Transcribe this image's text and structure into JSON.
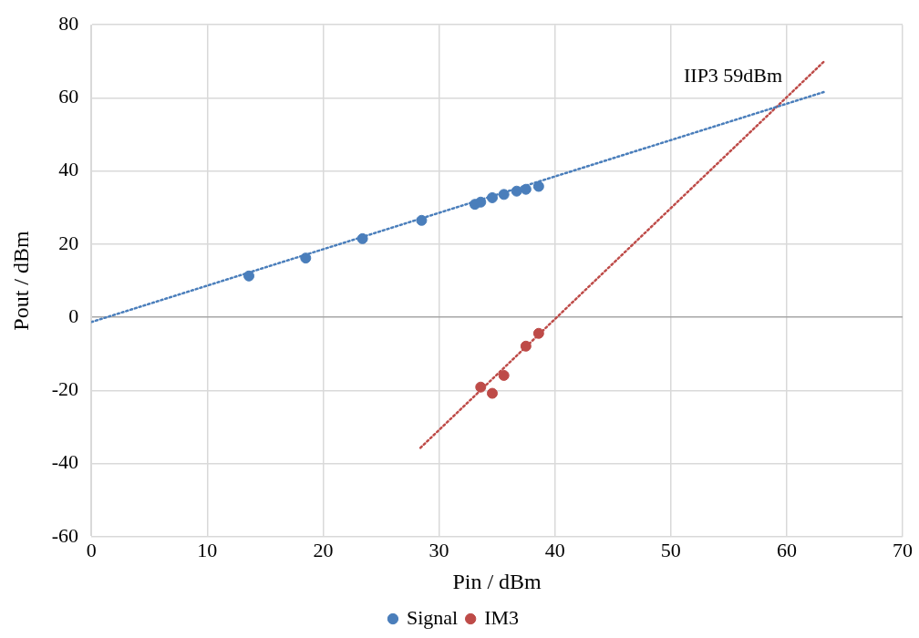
{
  "chart_data": {
    "type": "scatter",
    "xlabel": "Pin / dBm",
    "ylabel": "Pout / dBm",
    "xlim": [
      0,
      70
    ],
    "xticks": [
      0,
      10,
      20,
      30,
      40,
      50,
      60,
      70
    ],
    "ylim": [
      -60,
      80
    ],
    "yticks": [
      -60,
      -40,
      -20,
      0,
      20,
      40,
      60,
      80
    ],
    "grid": true,
    "legend": "bottom",
    "marker": "circle",
    "series": [
      {
        "name": "Signal",
        "color": "#4a7ebb",
        "x": [
          13.6,
          18.5,
          23.4,
          28.5,
          33.1,
          33.6,
          34.6,
          35.6,
          36.7,
          37.5,
          38.6
        ],
        "values": [
          11.3,
          16.2,
          21.5,
          26.5,
          30.9,
          31.5,
          32.7,
          33.6,
          34.5,
          35.0,
          35.8
        ]
      },
      {
        "name": "IM3",
        "color": "#be4b48",
        "x": [
          33.6,
          34.6,
          35.6,
          37.5,
          38.6
        ],
        "values": [
          -19.1,
          -20.8,
          -15.9,
          -7.9,
          -4.4
        ]
      },
      {
        "type": "line",
        "color": "#4a7ebb",
        "line_style": "dotted",
        "marker": "none",
        "x": [
          0,
          63.3
        ],
        "values": [
          -1.3,
          61.7
        ]
      },
      {
        "type": "line",
        "color": "#be4b48",
        "line_style": "dotted",
        "marker": "none",
        "x": [
          28.4,
          63.3
        ],
        "values": [
          -35.7,
          70.2
        ]
      }
    ],
    "annotations": [
      {
        "text": "IIP3 59dBm",
        "x": 59,
        "y": 59
      }
    ]
  }
}
